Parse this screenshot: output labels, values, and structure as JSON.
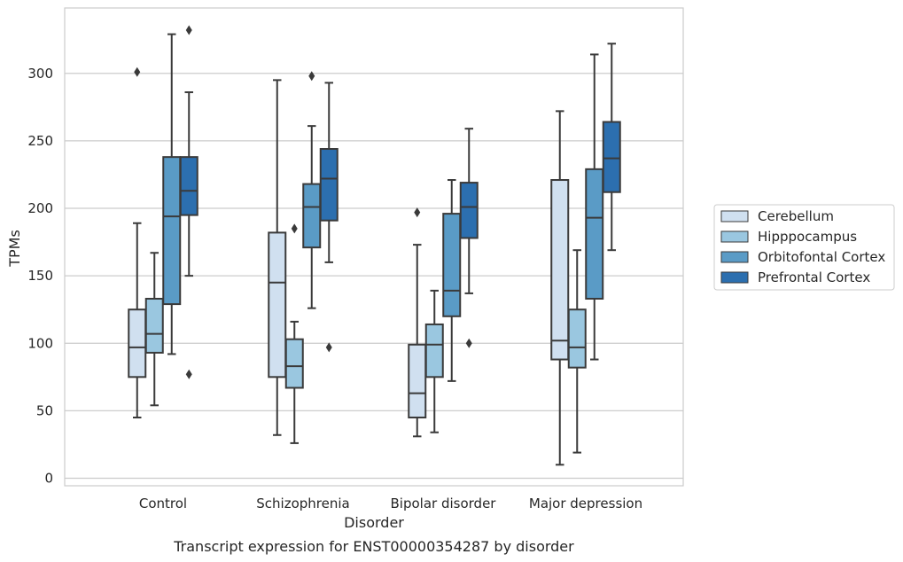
{
  "caption": "Transcript expression for ENST00000354287 by disorder",
  "chart_data": {
    "type": "box",
    "xlabel": "Disorder",
    "ylabel": "TPMs",
    "ylim": [
      -5,
      350
    ],
    "yticks": [
      0,
      50,
      100,
      150,
      200,
      250,
      300
    ],
    "grid": "horizontal",
    "legend_position": "right",
    "categories": [
      "Control",
      "Schizophrenia",
      "Bipolar disorder",
      "Major depression"
    ],
    "series": [
      {
        "name": "Cerebellum",
        "color": "#d0e0f0",
        "boxes": [
          {
            "whisker_low": 45,
            "q1": 75,
            "median": 97,
            "q3": 125,
            "whisker_high": 189,
            "outliers": [
              301
            ]
          },
          {
            "whisker_low": 32,
            "q1": 75,
            "median": 145,
            "q3": 182,
            "whisker_high": 295,
            "outliers": []
          },
          {
            "whisker_low": 31,
            "q1": 45,
            "median": 63,
            "q3": 99,
            "whisker_high": 173,
            "outliers": [
              197
            ]
          },
          {
            "whisker_low": 10,
            "q1": 88,
            "median": 102,
            "q3": 221,
            "whisker_high": 272,
            "outliers": []
          }
        ]
      },
      {
        "name": "Hipppocampus",
        "color": "#9ac7e0",
        "boxes": [
          {
            "whisker_low": 54,
            "q1": 93,
            "median": 107,
            "q3": 133,
            "whisker_high": 167,
            "outliers": []
          },
          {
            "whisker_low": 26,
            "q1": 67,
            "median": 83,
            "q3": 103,
            "whisker_high": 116,
            "outliers": [
              185
            ]
          },
          {
            "whisker_low": 34,
            "q1": 75,
            "median": 99,
            "q3": 114,
            "whisker_high": 139,
            "outliers": []
          },
          {
            "whisker_low": 19,
            "q1": 82,
            "median": 97,
            "q3": 125,
            "whisker_high": 169,
            "outliers": []
          }
        ]
      },
      {
        "name": "Orbitofontal Cortex",
        "color": "#5a9bc6",
        "boxes": [
          {
            "whisker_low": 92,
            "q1": 129,
            "median": 194,
            "q3": 238,
            "whisker_high": 329,
            "outliers": []
          },
          {
            "whisker_low": 126,
            "q1": 171,
            "median": 201,
            "q3": 218,
            "whisker_high": 261,
            "outliers": [
              298
            ]
          },
          {
            "whisker_low": 72,
            "q1": 120,
            "median": 139,
            "q3": 196,
            "whisker_high": 221,
            "outliers": []
          },
          {
            "whisker_low": 88,
            "q1": 133,
            "median": 193,
            "q3": 229,
            "whisker_high": 314,
            "outliers": []
          }
        ]
      },
      {
        "name": "Prefrontal Cortex",
        "color": "#2c6faf",
        "boxes": [
          {
            "whisker_low": 150,
            "q1": 195,
            "median": 213,
            "q3": 238,
            "whisker_high": 286,
            "outliers": [
              332,
              77
            ]
          },
          {
            "whisker_low": 160,
            "q1": 191,
            "median": 222,
            "q3": 244,
            "whisker_high": 293,
            "outliers": [
              97
            ]
          },
          {
            "whisker_low": 137,
            "q1": 178,
            "median": 201,
            "q3": 219,
            "whisker_high": 259,
            "outliers": [
              100
            ]
          },
          {
            "whisker_low": 169,
            "q1": 212,
            "median": 237,
            "q3": 264,
            "whisker_high": 322,
            "outliers": []
          }
        ]
      }
    ]
  }
}
